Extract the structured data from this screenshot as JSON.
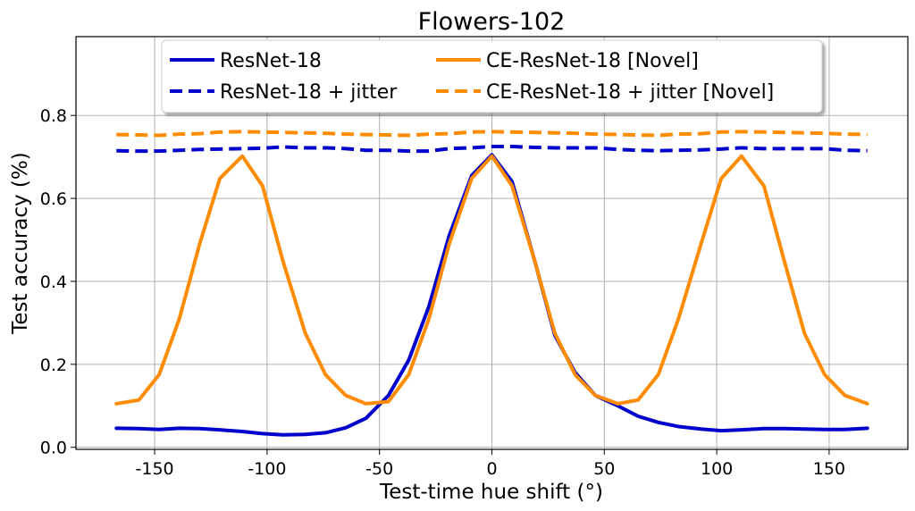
{
  "chart_data": {
    "type": "line",
    "title": "Flowers-102",
    "xlabel": "Test-time hue shift (°)",
    "ylabel": "Test accuracy (%)",
    "xlim": [
      -185,
      185
    ],
    "ylim": [
      -0.005,
      0.99
    ],
    "xticks": [
      -150,
      -100,
      -50,
      0,
      50,
      100,
      150
    ],
    "xtick_labels": [
      "-150",
      "-100",
      "-50",
      "0",
      "50",
      "100",
      "150"
    ],
    "yticks": [
      0.0,
      0.2,
      0.4,
      0.6,
      0.8
    ],
    "ytick_labels": [
      "0.0",
      "0.2",
      "0.4",
      "0.6",
      "0.8"
    ],
    "grid": true,
    "legend_position": "top",
    "x": [
      -167,
      -157,
      -148,
      -139,
      -130,
      -121,
      -111,
      -102,
      -93,
      -83,
      -74,
      -65,
      -56,
      -46,
      -37,
      -28,
      -19,
      -9,
      0,
      9,
      19,
      28,
      37,
      46,
      56,
      65,
      74,
      83,
      93,
      102,
      111,
      121,
      130,
      139,
      148,
      157,
      167
    ],
    "series": [
      {
        "name": "ResNet-18",
        "color": "#0000cc",
        "style": "solid",
        "values": [
          0.046,
          0.045,
          0.043,
          0.046,
          0.045,
          0.042,
          0.038,
          0.033,
          0.03,
          0.031,
          0.035,
          0.047,
          0.07,
          0.125,
          0.21,
          0.34,
          0.51,
          0.655,
          0.705,
          0.64,
          0.45,
          0.27,
          0.18,
          0.125,
          0.1,
          0.075,
          0.06,
          0.05,
          0.044,
          0.04,
          0.042,
          0.045,
          0.045,
          0.044,
          0.043,
          0.043,
          0.046
        ]
      },
      {
        "name": "ResNet-18 + jitter",
        "color": "#0000cc",
        "style": "dashed",
        "values": [
          0.715,
          0.714,
          0.714,
          0.716,
          0.718,
          0.719,
          0.72,
          0.721,
          0.724,
          0.722,
          0.722,
          0.72,
          0.716,
          0.716,
          0.714,
          0.714,
          0.72,
          0.722,
          0.725,
          0.725,
          0.723,
          0.722,
          0.722,
          0.722,
          0.718,
          0.716,
          0.715,
          0.716,
          0.717,
          0.719,
          0.722,
          0.72,
          0.72,
          0.72,
          0.72,
          0.716,
          0.715
        ]
      },
      {
        "name": "CE-ResNet-18 [Novel]",
        "color": "#ff8c00",
        "style": "solid",
        "values": [
          0.105,
          0.114,
          0.175,
          0.31,
          0.49,
          0.648,
          0.702,
          0.63,
          0.45,
          0.275,
          0.175,
          0.125,
          0.105,
          0.11,
          0.175,
          0.31,
          0.49,
          0.648,
          0.702,
          0.63,
          0.45,
          0.275,
          0.175,
          0.125,
          0.105,
          0.114,
          0.175,
          0.31,
          0.49,
          0.648,
          0.702,
          0.63,
          0.45,
          0.275,
          0.175,
          0.125,
          0.105
        ]
      },
      {
        "name": "CE-ResNet-18 + jitter [Novel]",
        "color": "#ff8c00",
        "style": "dashed",
        "values": [
          0.754,
          0.753,
          0.752,
          0.755,
          0.756,
          0.76,
          0.761,
          0.76,
          0.759,
          0.758,
          0.757,
          0.755,
          0.754,
          0.753,
          0.752,
          0.755,
          0.756,
          0.76,
          0.761,
          0.76,
          0.759,
          0.758,
          0.757,
          0.755,
          0.754,
          0.753,
          0.752,
          0.755,
          0.756,
          0.76,
          0.761,
          0.76,
          0.759,
          0.758,
          0.757,
          0.755,
          0.754
        ]
      }
    ]
  }
}
